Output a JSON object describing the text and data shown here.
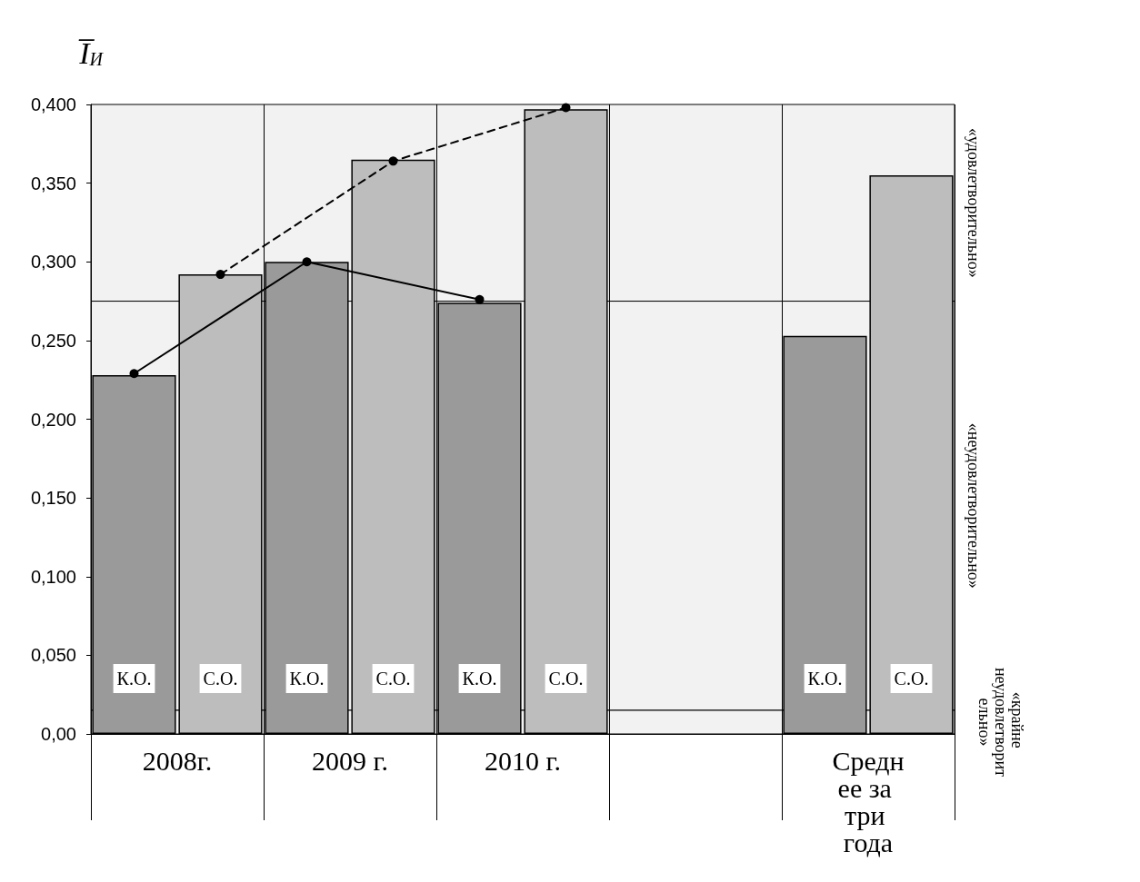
{
  "chart_data": {
    "type": "bar",
    "ylabel": "I̅$_{И}$",
    "categories": [
      "К.О.",
      "С.О.",
      "К.О.",
      "С.О.",
      "К.О.",
      "С.О.",
      null,
      null,
      "К.О.",
      "С.О."
    ],
    "series": [
      {
        "colors": [
          "#9a9a9a",
          "#bdbdbd",
          "#9a9a9a",
          "#bdbdbd",
          "#9a9a9a",
          "#bdbdbd",
          "#9a9a9a",
          "#bdbdbd",
          "#9a9a9a",
          "#bdbdbd"
        ],
        "values": [
          0.228,
          0.292,
          0.3,
          0.365,
          0.274,
          0.397,
          null,
          null,
          0.253,
          0.355
        ]
      },
      {
        "type": "line",
        "color": "#000000",
        "line_style": "solid",
        "marker": "circle",
        "values": [
          0.229,
          null,
          0.3,
          null,
          0.276,
          null,
          null,
          null,
          null,
          null
        ]
      },
      {
        "type": "line",
        "color": "#000000",
        "line_style": "dashed",
        "marker": "circle",
        "values": [
          null,
          0.292,
          null,
          0.364,
          null,
          0.398,
          null,
          null,
          null,
          null
        ]
      }
    ],
    "annotations": [
      "2008г.",
      "2009 г.",
      "2010 г.",
      "Среднее за три года"
    ],
    "ylim": [
      0,
      0.4
    ],
    "yticks": [
      {
        "value": 0,
        "label": "0,00"
      },
      {
        "value": 0.05,
        "label": "0,050"
      },
      {
        "value": 0.1,
        "label": "0,100"
      },
      {
        "value": 0.15,
        "label": "0,150"
      },
      {
        "value": 0.2,
        "label": "0,200"
      },
      {
        "value": 0.25,
        "label": "0,250"
      },
      {
        "value": 0.3,
        "label": "0,300"
      },
      {
        "value": 0.35,
        "label": "0,350"
      },
      {
        "value": 0.4,
        "label": "0,400"
      }
    ],
    "bands": [
      {
        "axis": "y",
        "from": 0.275,
        "to": 0.4,
        "label": "«удовлетворительно»",
        "color": "#f2f2f2"
      },
      {
        "axis": "y",
        "from": 0.015,
        "to": 0.275,
        "label": "«неудовлетворительно»",
        "color": "#f2f2f2"
      },
      {
        "axis": "y",
        "from": 0,
        "to": 0.015,
        "label": "«крайне неудовлетворительно»",
        "color": "#f2f2f2"
      }
    ],
    "grid": true
  }
}
